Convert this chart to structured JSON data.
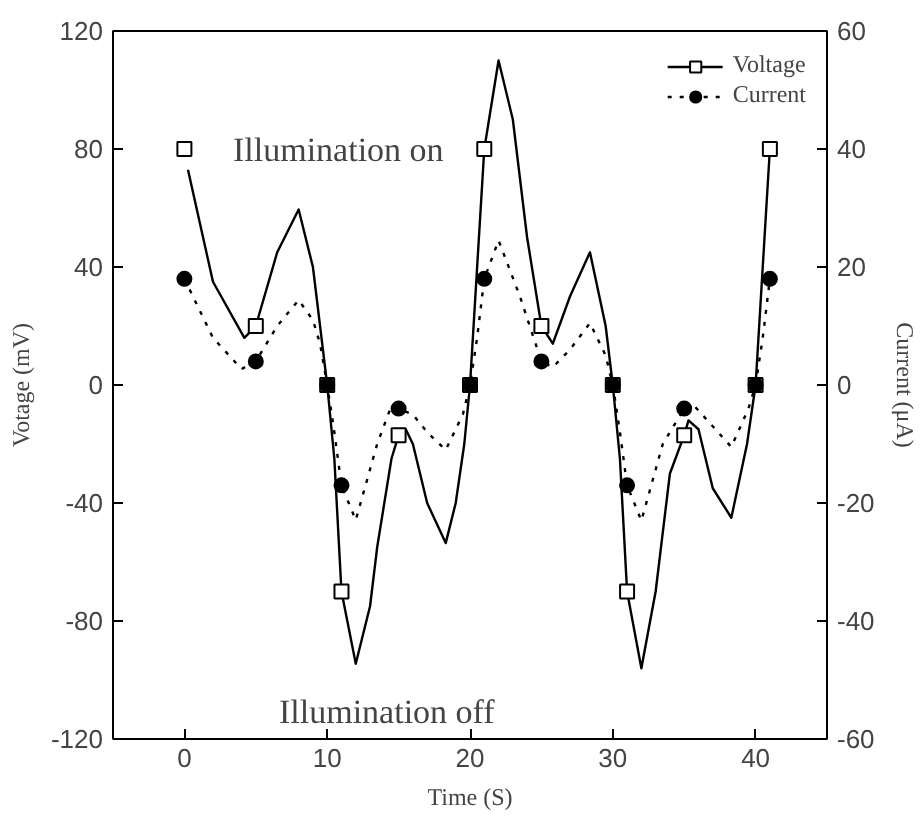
{
  "chart_data": {
    "type": "line",
    "xlabel": "Time (S)",
    "ylabel": "Votage (mV)",
    "y2label": "Current (μA)",
    "xlim": [
      -5,
      45
    ],
    "xticks": [
      0,
      10,
      20,
      30,
      40
    ],
    "ylim": [
      -120,
      120
    ],
    "yticks": [
      -120,
      -80,
      -40,
      0,
      40,
      80,
      120
    ],
    "y2lim": [
      -60,
      60
    ],
    "y2ticks": [
      -60,
      -40,
      -20,
      0,
      20,
      40,
      60
    ],
    "annotations": [
      "Illumination on",
      "Illumination off"
    ],
    "legend": "top right",
    "grid": false,
    "series": [
      {
        "name": "Voltage",
        "color": "#000000",
        "line_style": "solid",
        "marker": "none",
        "x": [
          0.25,
          2,
          4.2,
          5,
          6.5,
          8,
          9,
          9.5,
          10,
          10.5,
          11,
          12,
          13,
          13.5,
          14.5,
          15,
          15.5,
          16,
          17,
          18.3,
          19,
          19.6,
          20,
          20.5,
          21,
          22,
          23,
          24,
          25,
          25.8,
          27,
          28.4,
          29.5,
          30,
          30.5,
          31,
          32,
          33,
          34,
          35,
          35.3,
          36,
          37,
          38.3,
          39.4,
          40,
          40.5,
          41
        ],
        "values": [
          73,
          35,
          16,
          20,
          45,
          59.5,
          40,
          20,
          0,
          -25,
          -70,
          -94.5,
          -75,
          -55,
          -25,
          -17,
          -15,
          -20,
          -40,
          -53.6,
          -40,
          -20,
          0,
          40,
          80,
          110,
          90,
          50,
          20,
          14,
          30,
          45,
          20,
          0,
          -25,
          -70,
          -96,
          -70,
          -30,
          -17,
          -12,
          -15,
          -35,
          -45,
          -20,
          0,
          40,
          80
        ]
      },
      {
        "type": "scatter",
        "color": "#000000",
        "marker": "square",
        "x": [
          0,
          5,
          10,
          11,
          15,
          20,
          21,
          25,
          30,
          31,
          35,
          40,
          41
        ],
        "values": [
          80,
          20,
          0,
          -70,
          -17,
          0,
          80,
          20,
          0,
          -70,
          -17,
          0,
          80
        ]
      },
      {
        "name": "Current",
        "axis": "y2",
        "color": "#000000",
        "line_style": "dotted",
        "marker": "none",
        "x": [
          0,
          2,
          4,
          5,
          6.5,
          8,
          9,
          9.5,
          10,
          10.5,
          11,
          12,
          13.5,
          14.5,
          15,
          16,
          17,
          18.3,
          19.5,
          20,
          20.5,
          21,
          22,
          23.5,
          25,
          25.8,
          27,
          28.4,
          29.5,
          30,
          30.5,
          31,
          32,
          33.5,
          35,
          35.5,
          37,
          38.3,
          39.5,
          40,
          40.5,
          41
        ],
        "values": [
          18,
          8,
          2.7,
          4,
          10,
          14.4,
          11,
          7,
          0,
          -8,
          -17,
          -22.9,
          -10,
          -3.5,
          -4,
          -5,
          -8,
          -11,
          -5,
          0,
          8,
          18,
          24.5,
          15,
          4,
          3,
          6,
          10.5,
          5,
          0,
          -8,
          -17,
          -23,
          -10,
          -4,
          -3,
          -7,
          -10.5,
          -4,
          0,
          8,
          18
        ]
      },
      {
        "type": "scatter",
        "axis": "y2",
        "color": "#000000",
        "marker": "circle",
        "x": [
          0,
          5,
          10,
          11,
          15,
          20,
          21,
          25,
          30,
          31,
          35,
          40,
          41
        ],
        "values": [
          18,
          4,
          0,
          -17,
          -4,
          0,
          18,
          4,
          0,
          -17,
          -4,
          0,
          18
        ]
      }
    ]
  }
}
